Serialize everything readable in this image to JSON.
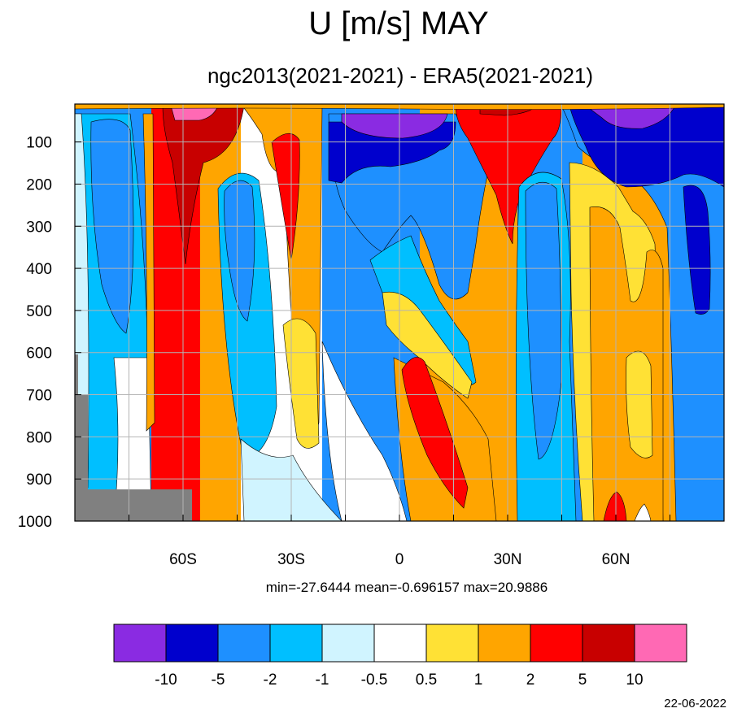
{
  "chart_data": {
    "type": "heatmap",
    "title": "U [m/s] MAY",
    "subtitle": "ngc2013(2021-2021) - ERA5(2021-2021)",
    "stats": "min=-27.6444   mean=-0.696157   max=20.9886",
    "date": "22-06-2022",
    "x_ticks": [
      {
        "value": -60,
        "label": "60S"
      },
      {
        "value": -30,
        "label": "30S"
      },
      {
        "value": 0,
        "label": "0"
      },
      {
        "value": 30,
        "label": "30N"
      },
      {
        "value": 60,
        "label": "60N"
      }
    ],
    "y_ticks": [
      {
        "value": 100,
        "label": "100"
      },
      {
        "value": 200,
        "label": "200"
      },
      {
        "value": 300,
        "label": "300"
      },
      {
        "value": 400,
        "label": "400"
      },
      {
        "value": 500,
        "label": "500"
      },
      {
        "value": 600,
        "label": "600"
      },
      {
        "value": 700,
        "label": "700"
      },
      {
        "value": 800,
        "label": "800"
      },
      {
        "value": 900,
        "label": "900"
      },
      {
        "value": 1000,
        "label": "1000"
      }
    ],
    "xlim": [
      -90,
      90
    ],
    "ylim": [
      10,
      1000
    ],
    "y_inverted": true,
    "grid": true,
    "levels": [
      -10,
      -5,
      -2,
      -1,
      -0.5,
      0.5,
      1,
      2,
      5,
      10
    ],
    "level_labels": [
      "-10",
      "-5",
      "-2",
      "-1",
      "-0.5",
      "0.5",
      "1",
      "2",
      "5",
      "10"
    ],
    "colors": [
      "#8a2be2",
      "#0000cd",
      "#1e90ff",
      "#00bfff",
      "#d0f4ff",
      "#ffffff",
      "#ffe135",
      "#ffa500",
      "#ff0000",
      "#c80000",
      "#ff69b4"
    ],
    "missing_color": "#808080",
    "legend_placement": "bottom"
  }
}
